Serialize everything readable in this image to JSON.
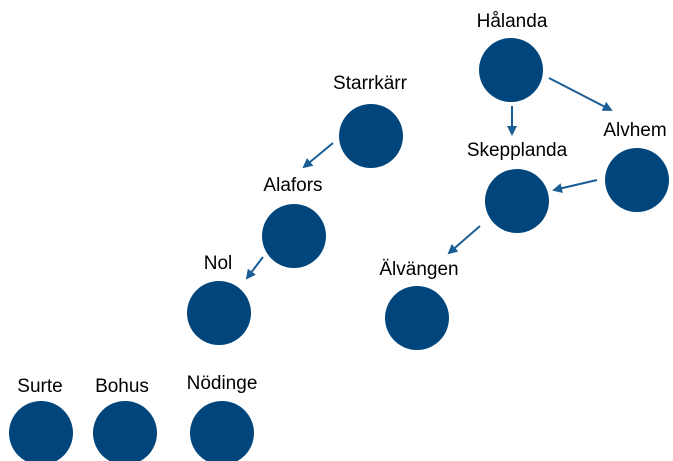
{
  "nodes": [
    {
      "label": "Hålanda"
    },
    {
      "label": "Starrkärr"
    },
    {
      "label": "Alvhem"
    },
    {
      "label": "Skepplanda"
    },
    {
      "label": "Alafors"
    },
    {
      "label": "Nol"
    },
    {
      "label": "Älvängen"
    },
    {
      "label": "Surte"
    },
    {
      "label": "Bohus"
    },
    {
      "label": "Nödinge"
    }
  ]
}
